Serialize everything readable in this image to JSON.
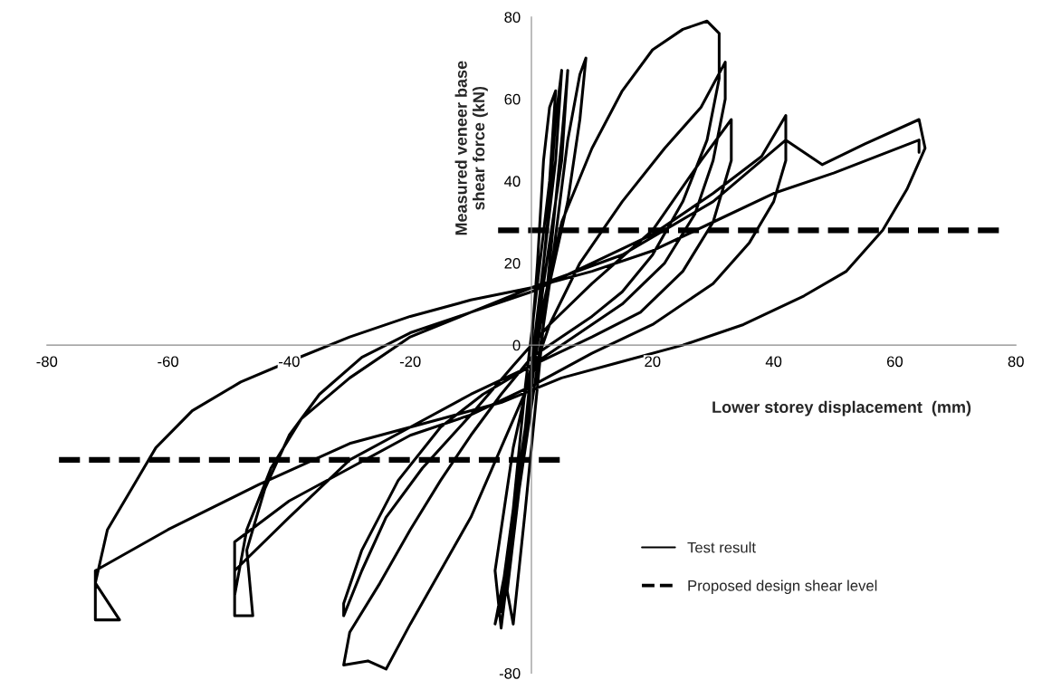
{
  "chart_data": {
    "type": "line",
    "xlabel": "Lower storey displacement  (mm)",
    "ylabel": "Measured veneer base\nshear force (kN)",
    "xlim": [
      -80,
      80
    ],
    "ylim": [
      -80,
      80
    ],
    "xticks": [
      -80,
      -60,
      -40,
      -20,
      20,
      40,
      60,
      80
    ],
    "yticks": [
      -80,
      0,
      20,
      40,
      60,
      80
    ],
    "grid": false,
    "legend": "bottom right",
    "marker": "none",
    "series": [
      {
        "name": "Test result",
        "color": "#000000",
        "line_style": "solid",
        "x": [
          0,
          1,
          2,
          3,
          4,
          3,
          1,
          -1,
          -3,
          -4,
          -5,
          -3,
          -1,
          1,
          3,
          4,
          5,
          4,
          2,
          0,
          -2,
          -4,
          -3,
          -1,
          1,
          3,
          5,
          6,
          5,
          2,
          0,
          -3,
          -5,
          -6,
          -3,
          0,
          3,
          6,
          8,
          9,
          8,
          6,
          3,
          0,
          -3,
          -6,
          -5,
          -3,
          0,
          2,
          5,
          10,
          15,
          20,
          25,
          29,
          31,
          31,
          29,
          25,
          20,
          15,
          10,
          5,
          0,
          -5,
          -10,
          -15,
          -20,
          -25,
          -30,
          -31,
          -27,
          -24,
          -20,
          -15,
          -10,
          -5,
          0,
          3,
          8,
          15,
          22,
          28,
          32,
          32,
          30,
          27,
          22,
          15,
          8,
          0,
          -8,
          -15,
          -22,
          -28,
          -31,
          -31,
          -28,
          -24,
          -18,
          -10,
          -3,
          3,
          10,
          20,
          28,
          33,
          33,
          30,
          25,
          18,
          10,
          0,
          -10,
          -20,
          -30,
          -40,
          -49,
          -49,
          -46,
          -47,
          -44,
          -40,
          -35,
          -28,
          -20,
          -10,
          0,
          10,
          20,
          30,
          38,
          42,
          42,
          40,
          36,
          30,
          20,
          10,
          0,
          -10,
          -20,
          -30,
          -40,
          -49,
          -49,
          -47,
          -43,
          -38,
          -30,
          -20,
          -10,
          0,
          15,
          30,
          42,
          48,
          55,
          64,
          65,
          62,
          58,
          52,
          45,
          35,
          25,
          15,
          5,
          -5,
          -15,
          -30,
          -45,
          -60,
          -72,
          -72,
          -68,
          -72,
          -70,
          -66,
          -62,
          -56,
          -48,
          -40,
          -30,
          -20,
          -10,
          0,
          10,
          20,
          30,
          40,
          50,
          64,
          64
        ],
        "values": [
          0,
          20,
          45,
          58,
          62,
          40,
          15,
          -10,
          -40,
          -58,
          -65,
          -45,
          -20,
          5,
          35,
          55,
          67,
          45,
          20,
          -5,
          -35,
          -60,
          -68,
          -40,
          -10,
          20,
          50,
          67,
          45,
          15,
          -10,
          -40,
          -62,
          -68,
          -45,
          -15,
          15,
          50,
          66,
          70,
          55,
          35,
          15,
          -5,
          -25,
          -55,
          -69,
          -45,
          -10,
          10,
          30,
          48,
          62,
          72,
          77,
          79,
          76,
          65,
          50,
          35,
          22,
          13,
          7,
          2,
          -3,
          -12,
          -22,
          -33,
          -45,
          -58,
          -70,
          -78,
          -77,
          -79,
          -68,
          -55,
          -42,
          -25,
          -8,
          5,
          20,
          35,
          48,
          58,
          69,
          60,
          45,
          32,
          20,
          10,
          3,
          -5,
          -12,
          -20,
          -33,
          -50,
          -63,
          -66,
          -55,
          -42,
          -30,
          -17,
          -5,
          5,
          15,
          28,
          45,
          55,
          45,
          30,
          18,
          8,
          2,
          -5,
          -12,
          -20,
          -28,
          -42,
          -55,
          -66,
          -66,
          -50,
          -35,
          -22,
          -12,
          -3,
          3,
          8,
          13,
          20,
          27,
          37,
          46,
          56,
          45,
          35,
          25,
          15,
          5,
          -2,
          -10,
          -17,
          -22,
          -30,
          -38,
          -48,
          -61,
          -45,
          -30,
          -18,
          -8,
          2,
          8,
          14,
          22,
          35,
          50,
          44,
          49,
          55,
          48,
          38,
          28,
          18,
          12,
          5,
          0,
          -4,
          -8,
          -14,
          -18,
          -24,
          -34,
          -45,
          -55,
          -67,
          -67,
          -58,
          -45,
          -35,
          -25,
          -16,
          -9,
          -4,
          2,
          7,
          11,
          14,
          18,
          23,
          30,
          37,
          42,
          50,
          47
        ]
      },
      {
        "name": "Proposed design shear level",
        "color": "#000000",
        "line_style": "dashed",
        "x": [
          -78,
          5.5,
          0,
          -5.5,
          78
        ],
        "values": [
          -28,
          -28,
          null,
          28,
          28
        ]
      }
    ]
  }
}
